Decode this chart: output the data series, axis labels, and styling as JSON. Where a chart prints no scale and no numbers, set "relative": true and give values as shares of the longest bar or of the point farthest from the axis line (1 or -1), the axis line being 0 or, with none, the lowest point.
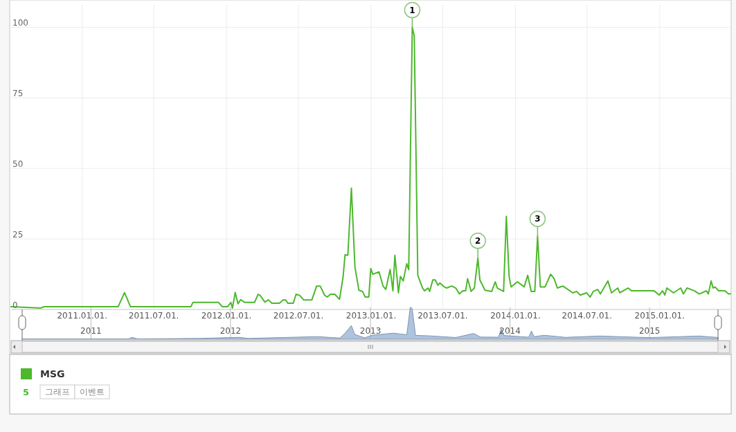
{
  "chart_data": [
    {
      "type": "line",
      "xlim": [
        "2010-07-05",
        "2015-06-29"
      ],
      "ylim": [
        0,
        108
      ],
      "xticks": [
        {
          "value": "2011-01-01",
          "label": "2011.01.01."
        },
        {
          "value": "2011-07-01",
          "label": "2011.07.01."
        },
        {
          "value": "2012-01-01",
          "label": "2012.01.01."
        },
        {
          "value": "2012-07-01",
          "label": "2012.07.01."
        },
        {
          "value": "2013-01-01",
          "label": "2013.01.01."
        },
        {
          "value": "2013-07-01",
          "label": "2013.07.01."
        },
        {
          "value": "2014-01-01",
          "label": "2014.01.01."
        },
        {
          "value": "2014-07-01",
          "label": "2014.07.01."
        },
        {
          "value": "2015-01-01",
          "label": "2015.01.01."
        }
      ],
      "yticks": [
        0,
        25,
        50,
        75,
        100
      ],
      "grid": true,
      "legend": "bottom left",
      "x": [
        "2010-07-05",
        "2010-09-18",
        "2010-09-27",
        "2011-04-02",
        "2011-04-18",
        "2011-05-03",
        "2011-10-03",
        "2011-10-08",
        "2011-12-12",
        "2011-12-21",
        "2012-01-04",
        "2012-01-12",
        "2012-01-16",
        "2012-01-23",
        "2012-01-30",
        "2012-02-06",
        "2012-02-16",
        "2012-03-12",
        "2012-03-21",
        "2012-03-26",
        "2012-04-07",
        "2012-04-16",
        "2012-04-25",
        "2012-05-14",
        "2012-05-23",
        "2012-05-30",
        "2012-06-04",
        "2012-06-18",
        "2012-06-25",
        "2012-07-04",
        "2012-07-14",
        "2012-08-04",
        "2012-08-16",
        "2012-08-25",
        "2012-09-05",
        "2012-09-12",
        "2012-09-20",
        "2012-10-01",
        "2012-10-13",
        "2012-10-22",
        "2012-10-27",
        "2012-11-03",
        "2012-11-12",
        "2012-11-21",
        "2012-12-01",
        "2012-12-10",
        "2012-12-17",
        "2012-12-26",
        "2012-12-31",
        "2013-01-05",
        "2013-01-21",
        "2013-01-31",
        "2013-02-07",
        "2013-02-18",
        "2013-02-25",
        "2013-03-02",
        "2013-03-11",
        "2013-03-16",
        "2013-03-23",
        "2013-04-01",
        "2013-04-06",
        "2013-04-15",
        "2013-04-20",
        "2013-04-29",
        "2013-05-11",
        "2013-05-16",
        "2013-05-25",
        "2013-05-29",
        "2013-06-06",
        "2013-06-12",
        "2013-06-19",
        "2013-06-24",
        "2013-07-03",
        "2013-07-11",
        "2013-07-24",
        "2013-08-03",
        "2013-08-12",
        "2013-08-21",
        "2013-08-28",
        "2013-09-02",
        "2013-09-11",
        "2013-09-19",
        "2013-09-28",
        "2013-10-03",
        "2013-10-16",
        "2013-11-02",
        "2013-11-11",
        "2013-11-16",
        "2013-12-02",
        "2013-12-09",
        "2013-12-16",
        "2013-12-21",
        "2014-01-06",
        "2014-01-23",
        "2014-02-01",
        "2014-02-10",
        "2014-02-19",
        "2014-02-26",
        "2014-03-05",
        "2014-03-17",
        "2014-03-31",
        "2014-04-09",
        "2014-04-17",
        "2014-05-01",
        "2014-05-26",
        "2014-06-05",
        "2014-06-14",
        "2014-06-30",
        "2014-07-09",
        "2014-07-17",
        "2014-07-28",
        "2014-08-04",
        "2014-08-23",
        "2014-09-01",
        "2014-09-17",
        "2014-09-22",
        "2014-10-13",
        "2014-10-22",
        "2014-11-10",
        "2014-12-18",
        "2014-12-31",
        "2015-01-08",
        "2015-01-14",
        "2015-01-19",
        "2015-02-05",
        "2015-02-23",
        "2015-03-02",
        "2015-03-11",
        "2015-03-30",
        "2015-04-11",
        "2015-04-29",
        "2015-05-04",
        "2015-05-11",
        "2015-05-16",
        "2015-05-21",
        "2015-05-30",
        "2015-06-15",
        "2015-06-24",
        "2015-06-29"
      ],
      "series": [
        {
          "name": "MSG",
          "color": "#4cb82c",
          "values": [
            1,
            0.5,
            1,
            1,
            6,
            1,
            1,
            2.5,
            2.5,
            1,
            1,
            2.5,
            0.5,
            6,
            2,
            3.5,
            2.5,
            2.5,
            5.4,
            5,
            2.6,
            3.4,
            2.2,
            2.2,
            3.4,
            3.4,
            2.2,
            2.2,
            5.4,
            5,
            3.4,
            3.4,
            8.3,
            8.3,
            5.1,
            4.4,
            5.4,
            5.4,
            3.6,
            11.6,
            19.4,
            19.2,
            43,
            15,
            6.8,
            6.4,
            4.4,
            4.4,
            14.5,
            12.5,
            13.3,
            8.3,
            7.1,
            14.2,
            6.6,
            19.2,
            5.9,
            11.7,
            10.1,
            16.2,
            14.1,
            100,
            97,
            12.1,
            7.6,
            6.6,
            7.6,
            6.4,
            10.5,
            10.5,
            8.6,
            9.4,
            8.2,
            7.6,
            8.3,
            7.6,
            5.5,
            6.6,
            6.6,
            10.9,
            6.4,
            7.6,
            18.2,
            10.5,
            6.8,
            6.4,
            9.8,
            7.6,
            6.4,
            33,
            11.7,
            8,
            9.8,
            8,
            12.1,
            6.4,
            6.4,
            26,
            8,
            8,
            12.5,
            10.9,
            7.6,
            8.3,
            5.9,
            6.4,
            5.1,
            5.9,
            4.4,
            6.4,
            7.1,
            5.5,
            10.1,
            5.9,
            7.6,
            5.9,
            7.6,
            6.6,
            6.6,
            6.6,
            5.1,
            6.6,
            5.1,
            7.6,
            5.9,
            7.6,
            5.5,
            7.6,
            6.6,
            5.5,
            6.6,
            5.5,
            10.1,
            7.6,
            8,
            6.6,
            6.6,
            5.5,
            5.5
          ]
        }
      ],
      "annotations": [
        "5",
        "그래프",
        "이벤트",
        {
          "text": "1",
          "x": "2013-04-15",
          "y": 100
        },
        {
          "text": "2",
          "x": "2013-09-28",
          "y": 18.2
        },
        {
          "text": "3",
          "x": "2014-02-26",
          "y": 26
        }
      ]
    },
    {
      "type": "area",
      "relative": true,
      "xlim": [
        "2010-07-05",
        "2015-06-29"
      ],
      "grid": "x",
      "xticks": [
        {
          "value": "2011-01-01",
          "label": "2011"
        },
        {
          "value": "2012-01-01",
          "label": "2012"
        },
        {
          "value": "2013-01-01",
          "label": "2013"
        },
        {
          "value": "2014-01-01",
          "label": "2014"
        },
        {
          "value": "2015-01-01",
          "label": "2015"
        }
      ],
      "x": [
        "2010-07-05",
        "2011-04-10",
        "2011-04-18",
        "2011-05-03",
        "2011-10-08",
        "2012-01-23",
        "2012-02-16",
        "2012-08-16",
        "2012-10-13",
        "2012-10-27",
        "2012-11-12",
        "2012-11-21",
        "2012-12-17",
        "2013-01-05",
        "2013-03-02",
        "2013-04-06",
        "2013-04-15",
        "2013-04-20",
        "2013-04-29",
        "2013-06-06",
        "2013-08-12",
        "2013-09-28",
        "2013-10-16",
        "2013-12-02",
        "2013-12-09",
        "2013-12-16",
        "2014-02-19",
        "2014-02-26",
        "2014-03-05",
        "2014-03-31",
        "2014-05-26",
        "2014-08-23",
        "2014-12-31",
        "2015-05-11",
        "2015-06-29"
      ],
      "series": [
        {
          "color": "#9fb8d8",
          "values": [
            0.01,
            0.01,
            0.06,
            0.01,
            0.025,
            0.06,
            0.025,
            0.083,
            0.036,
            0.194,
            0.43,
            0.15,
            0.044,
            0.125,
            0.192,
            0.141,
            1,
            0.97,
            0.121,
            0.105,
            0.055,
            0.182,
            0.068,
            0.064,
            0.33,
            0.117,
            0.064,
            0.26,
            0.08,
            0.125,
            0.059,
            0.101,
            0.051,
            0.101,
            0.055
          ]
        }
      ]
    }
  ]
}
